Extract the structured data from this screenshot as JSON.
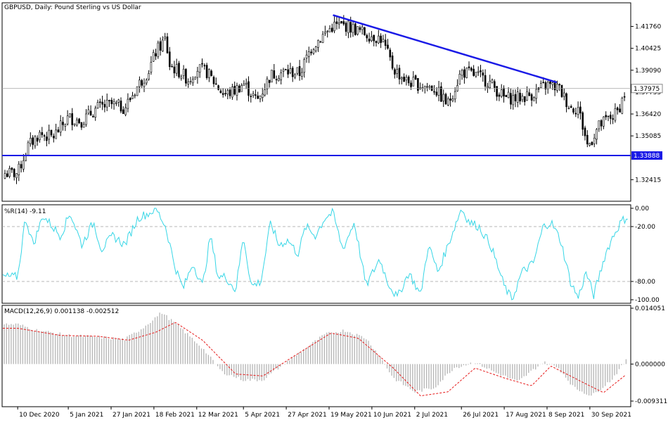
{
  "window": {
    "title": "GBPUSD, Daily:  Pound Sterling vs US Dollar"
  },
  "colors": {
    "frame": "#000000",
    "bull_candle": "#000000",
    "bear_candle": "#000000",
    "trendline": "#1a1ae6",
    "support_line": "#1a1ae6",
    "wpr_line": "#36d6e6",
    "macd_hist": "#b4b4b4",
    "macd_signal": "#e61a1a",
    "level_line": "#a0a0a0",
    "price_tag_bg": "#ffffff",
    "support_tag_bg": "#1a1ae6",
    "support_tag_text": "#ffffff"
  },
  "chart_data": [
    {
      "type": "candlestick",
      "title": "GBPUSD, Daily:  Pound Sterling vs US Dollar",
      "y_ticks": [
        "1.41760",
        "1.40425",
        "1.39090",
        "1.37755",
        "1.36420",
        "1.35085",
        "1.32415"
      ],
      "ylim": [
        1.311,
        1.432
      ],
      "current_price": 1.37975,
      "current_price_label": "1.37975",
      "support_level": 1.33888,
      "support_level_label": "1.33888",
      "trendline": {
        "from": {
          "date": "2021-05-21",
          "value": 1.4245
        },
        "to": {
          "date": "2021-09-13",
          "value": 1.3835
        }
      },
      "close_path": [
        [
          "2020-12-10",
          1.328
        ],
        [
          "2020-12-15",
          1.344
        ],
        [
          "2020-12-21",
          1.352
        ],
        [
          "2020-12-28",
          1.35
        ],
        [
          "2021-01-05",
          1.362
        ],
        [
          "2021-01-12",
          1.36
        ],
        [
          "2021-01-20",
          1.368
        ],
        [
          "2021-01-27",
          1.37
        ],
        [
          "2021-02-03",
          1.368
        ],
        [
          "2021-02-10",
          1.382
        ],
        [
          "2021-02-15",
          1.39
        ],
        [
          "2021-02-19",
          1.402
        ],
        [
          "2021-02-24",
          1.41
        ],
        [
          "2021-02-26",
          1.394
        ],
        [
          "2021-03-03",
          1.39
        ],
        [
          "2021-03-08",
          1.385
        ],
        [
          "2021-03-12",
          1.392
        ],
        [
          "2021-03-17",
          1.39
        ],
        [
          "2021-03-22",
          1.382
        ],
        [
          "2021-03-26",
          1.376
        ],
        [
          "2021-03-31",
          1.378
        ],
        [
          "2021-04-05",
          1.383
        ],
        [
          "2021-04-12",
          1.372
        ],
        [
          "2021-04-19",
          1.388
        ],
        [
          "2021-04-27",
          1.39
        ],
        [
          "2021-05-04",
          1.389
        ],
        [
          "2021-05-10",
          1.405
        ],
        [
          "2021-05-14",
          1.41
        ],
        [
          "2021-05-21",
          1.418
        ],
        [
          "2021-05-28",
          1.418
        ],
        [
          "2021-06-03",
          1.415
        ],
        [
          "2021-06-10",
          1.412
        ],
        [
          "2021-06-15",
          1.41
        ],
        [
          "2021-06-21",
          1.392
        ],
        [
          "2021-06-28",
          1.384
        ],
        [
          "2021-07-05",
          1.382
        ],
        [
          "2021-07-12",
          1.38
        ],
        [
          "2021-07-19",
          1.37
        ],
        [
          "2021-07-26",
          1.39
        ],
        [
          "2021-08-02",
          1.388
        ],
        [
          "2021-08-09",
          1.384
        ],
        [
          "2021-08-17",
          1.374
        ],
        [
          "2021-08-24",
          1.374
        ],
        [
          "2021-08-31",
          1.376
        ],
        [
          "2021-09-08",
          1.382
        ],
        [
          "2021-09-14",
          1.38
        ],
        [
          "2021-09-20",
          1.368
        ],
        [
          "2021-09-24",
          1.368
        ],
        [
          "2021-09-29",
          1.344
        ],
        [
          "2021-10-04",
          1.356
        ],
        [
          "2021-10-08",
          1.36
        ],
        [
          "2021-10-14",
          1.365
        ],
        [
          "2021-10-19",
          1.38
        ]
      ]
    },
    {
      "type": "line",
      "name": "%R(14) -9.11",
      "label": "%R(14) -9.11",
      "y_ticks": [
        "0.00",
        "-20.00",
        "-80.00",
        "-100.00"
      ],
      "levels": [
        -20,
        -80
      ],
      "ylim": [
        -100,
        0
      ],
      "path": [
        [
          "2020-12-10",
          -75
        ],
        [
          "2020-12-14",
          -10
        ],
        [
          "2020-12-18",
          -40
        ],
        [
          "2020-12-23",
          -8
        ],
        [
          "2021-01-01",
          -30
        ],
        [
          "2021-01-06",
          -5
        ],
        [
          "2021-01-12",
          -40
        ],
        [
          "2021-01-18",
          -15
        ],
        [
          "2021-01-22",
          -45
        ],
        [
          "2021-01-28",
          -30
        ],
        [
          "2021-02-03",
          -40
        ],
        [
          "2021-02-10",
          -10
        ],
        [
          "2021-02-16",
          -5
        ],
        [
          "2021-02-19",
          0
        ],
        [
          "2021-02-24",
          -20
        ],
        [
          "2021-03-01",
          -65
        ],
        [
          "2021-03-05",
          -88
        ],
        [
          "2021-03-10",
          -60
        ],
        [
          "2021-03-15",
          -85
        ],
        [
          "2021-03-19",
          -30
        ],
        [
          "2021-03-23",
          -75
        ],
        [
          "2021-03-27",
          -75
        ],
        [
          "2021-04-01",
          -90
        ],
        [
          "2021-04-05",
          -30
        ],
        [
          "2021-04-09",
          -85
        ],
        [
          "2021-04-14",
          -80
        ],
        [
          "2021-04-19",
          -15
        ],
        [
          "2021-04-23",
          -40
        ],
        [
          "2021-04-28",
          -35
        ],
        [
          "2021-05-03",
          -50
        ],
        [
          "2021-05-07",
          -20
        ],
        [
          "2021-05-12",
          -30
        ],
        [
          "2021-05-17",
          -10
        ],
        [
          "2021-05-21",
          -5
        ],
        [
          "2021-05-26",
          -45
        ],
        [
          "2021-06-01",
          -15
        ],
        [
          "2021-06-07",
          -85
        ],
        [
          "2021-06-14",
          -55
        ],
        [
          "2021-06-18",
          -80
        ],
        [
          "2021-06-23",
          -98
        ],
        [
          "2021-06-29",
          -70
        ],
        [
          "2021-07-05",
          -95
        ],
        [
          "2021-07-09",
          -40
        ],
        [
          "2021-07-14",
          -70
        ],
        [
          "2021-07-20",
          -35
        ],
        [
          "2021-07-26",
          0
        ],
        [
          "2021-07-30",
          -15
        ],
        [
          "2021-08-04",
          -20
        ],
        [
          "2021-08-10",
          -40
        ],
        [
          "2021-08-17",
          -85
        ],
        [
          "2021-08-21",
          -100
        ],
        [
          "2021-08-26",
          -70
        ],
        [
          "2021-09-01",
          -60
        ],
        [
          "2021-09-06",
          -20
        ],
        [
          "2021-09-10",
          -15
        ],
        [
          "2021-09-15",
          -35
        ],
        [
          "2021-09-20",
          -80
        ],
        [
          "2021-09-24",
          -98
        ],
        [
          "2021-09-28",
          -70
        ],
        [
          "2021-10-02",
          -95
        ],
        [
          "2021-10-08",
          -50
        ],
        [
          "2021-10-12",
          -30
        ],
        [
          "2021-10-16",
          -15
        ],
        [
          "2021-10-20",
          -8
        ]
      ]
    },
    {
      "type": "bar",
      "name": "MACD(12,26,9) 0.001138 -0.002512",
      "label": "MACD(12,26,9) 0.001138 -0.002512",
      "y_ticks": [
        "0.014051",
        "0.000000",
        "-0.009311"
      ],
      "ylim": [
        -0.009311,
        0.014051
      ],
      "histogram_path": [
        [
          "2020-12-10",
          0.01
        ],
        [
          "2020-12-20",
          0.0085
        ],
        [
          "2021-01-05",
          0.0072
        ],
        [
          "2021-01-20",
          0.0068
        ],
        [
          "2021-02-03",
          0.0062
        ],
        [
          "2021-02-12",
          0.009
        ],
        [
          "2021-02-22",
          0.013
        ],
        [
          "2021-03-05",
          0.0085
        ],
        [
          "2021-03-15",
          0.004
        ],
        [
          "2021-03-25",
          -0.002
        ],
        [
          "2021-04-05",
          -0.004
        ],
        [
          "2021-04-15",
          -0.004
        ],
        [
          "2021-04-27",
          0.0005
        ],
        [
          "2021-05-07",
          0.004
        ],
        [
          "2021-05-17",
          0.0075
        ],
        [
          "2021-05-27",
          0.0085
        ],
        [
          "2021-06-07",
          0.0065
        ],
        [
          "2021-06-14",
          0.002
        ],
        [
          "2021-06-21",
          -0.0035
        ],
        [
          "2021-07-02",
          -0.007
        ],
        [
          "2021-07-12",
          -0.006
        ],
        [
          "2021-07-22",
          -0.001
        ],
        [
          "2021-08-02",
          0.0005
        ],
        [
          "2021-08-12",
          -0.002
        ],
        [
          "2021-08-24",
          -0.0045
        ],
        [
          "2021-09-06",
          0.0005
        ],
        [
          "2021-09-14",
          -0.001
        ],
        [
          "2021-09-22",
          -0.006
        ],
        [
          "2021-10-01",
          -0.008
        ],
        [
          "2021-10-11",
          -0.004
        ],
        [
          "2021-10-19",
          0.0011
        ]
      ],
      "signal_path": [
        [
          "2020-12-10",
          0.009
        ],
        [
          "2021-01-01",
          0.0072
        ],
        [
          "2021-01-20",
          0.007
        ],
        [
          "2021-02-05",
          0.006
        ],
        [
          "2021-02-19",
          0.008
        ],
        [
          "2021-03-01",
          0.0105
        ],
        [
          "2021-03-15",
          0.006
        ],
        [
          "2021-04-01",
          -0.0025
        ],
        [
          "2021-04-15",
          -0.003
        ],
        [
          "2021-05-01",
          0.002
        ],
        [
          "2021-05-20",
          0.0078
        ],
        [
          "2021-06-03",
          0.0065
        ],
        [
          "2021-06-21",
          -0.001
        ],
        [
          "2021-07-05",
          -0.008
        ],
        [
          "2021-07-19",
          -0.007
        ],
        [
          "2021-08-02",
          -0.001
        ],
        [
          "2021-08-17",
          -0.0035
        ],
        [
          "2021-08-31",
          -0.0055
        ],
        [
          "2021-09-10",
          -0.0005
        ],
        [
          "2021-09-24",
          -0.004
        ],
        [
          "2021-10-07",
          -0.0072
        ],
        [
          "2021-10-19",
          -0.0025
        ]
      ]
    }
  ],
  "x_axis_labels": [
    {
      "label": "10 Dec 2020",
      "date": "2020-12-10"
    },
    {
      "label": "5 Jan 2021",
      "date": "2021-01-05"
    },
    {
      "label": "27 Jan 2021",
      "date": "2021-01-27"
    },
    {
      "label": "18 Feb 2021",
      "date": "2021-02-18"
    },
    {
      "label": "12 Mar 2021",
      "date": "2021-03-12"
    },
    {
      "label": "5 Apr 2021",
      "date": "2021-04-05"
    },
    {
      "label": "27 Apr 2021",
      "date": "2021-04-27"
    },
    {
      "label": "19 May 2021",
      "date": "2021-05-19"
    },
    {
      "label": "10 Jun 2021",
      "date": "2021-06-10"
    },
    {
      "label": "2 Jul 2021",
      "date": "2021-07-02"
    },
    {
      "label": "26 Jul 2021",
      "date": "2021-07-26"
    },
    {
      "label": "17 Aug 2021",
      "date": "2021-08-17"
    },
    {
      "label": "8 Sep 2021",
      "date": "2021-09-08"
    },
    {
      "label": "30 Sep 2021",
      "date": "2021-09-30"
    }
  ]
}
